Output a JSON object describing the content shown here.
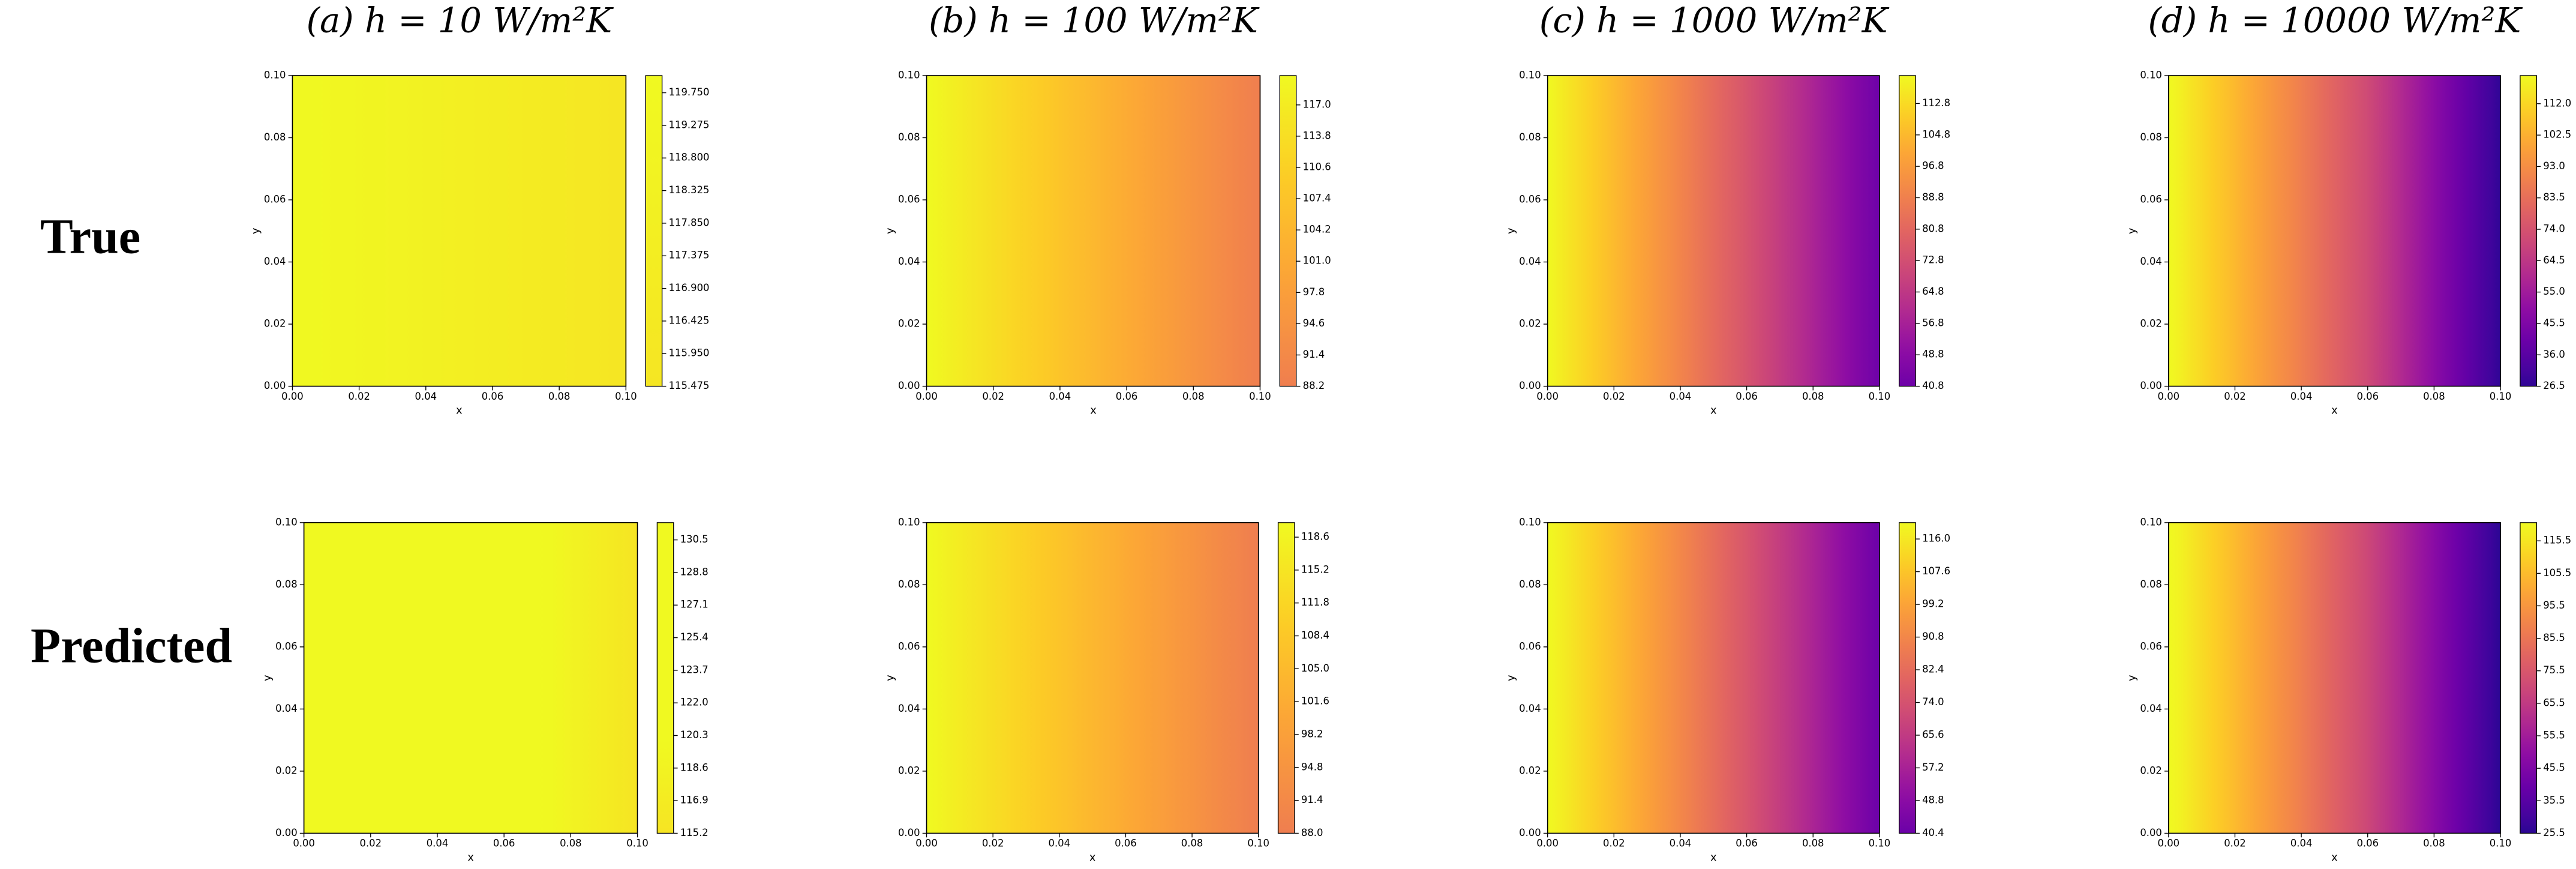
{
  "column_titles": [
    "(a) h = 10 W/m²K",
    "(b) h = 100 W/m²K",
    "(c) h = 1000 W/m²K",
    "(d) h = 10000 W/m²K"
  ],
  "row_labels": [
    "True",
    "Predicted"
  ],
  "chart_data": [
    {
      "type": "heatmap",
      "xlabel": "x",
      "ylabel": "y",
      "cmap": "plasma",
      "norm": [
        20,
        120
      ],
      "xlim": [
        0,
        0.1
      ],
      "ylim": [
        0,
        0.1
      ],
      "xticks": [
        {
          "value": 0,
          "label": "0.00"
        },
        {
          "value": 0.02,
          "label": "0.02"
        },
        {
          "value": 0.04,
          "label": "0.04"
        },
        {
          "value": 0.06,
          "label": "0.06"
        },
        {
          "value": 0.08,
          "label": "0.08"
        },
        {
          "value": 0.1,
          "label": "0.10"
        }
      ],
      "yticks": [
        {
          "value": 0,
          "label": "0.00"
        },
        {
          "value": 0.02,
          "label": "0.02"
        },
        {
          "value": 0.04,
          "label": "0.04"
        },
        {
          "value": 0.06,
          "label": "0.06"
        },
        {
          "value": 0.08,
          "label": "0.08"
        },
        {
          "value": 0.1,
          "label": "0.10"
        }
      ],
      "x": [
        0,
        0.02,
        0.04,
        0.06,
        0.08,
        0.1
      ],
      "values": [
        120.0,
        119.1,
        118.2,
        117.3,
        116.4,
        115.5
      ],
      "clim": [
        115.475,
        120.0
      ],
      "cticks": [
        115.475,
        {
          "value": 115.95,
          "label": "115.950"
        },
        116.425,
        {
          "value": 116.9,
          "label": "116.900"
        },
        117.375,
        {
          "value": 117.85,
          "label": "117.850"
        },
        118.325,
        {
          "value": 118.8,
          "label": "118.800"
        },
        119.275,
        {
          "value": 119.75,
          "label": "119.750"
        }
      ]
    },
    {
      "type": "heatmap",
      "xlabel": "x",
      "ylabel": "y",
      "cmap": "plasma",
      "norm": [
        20,
        120
      ],
      "xlim": [
        0,
        0.1
      ],
      "ylim": [
        0,
        0.1
      ],
      "xticks": [
        {
          "value": 0,
          "label": "0.00"
        },
        {
          "value": 0.02,
          "label": "0.02"
        },
        {
          "value": 0.04,
          "label": "0.04"
        },
        {
          "value": 0.06,
          "label": "0.06"
        },
        {
          "value": 0.08,
          "label": "0.08"
        },
        {
          "value": 0.1,
          "label": "0.10"
        }
      ],
      "yticks": [
        {
          "value": 0,
          "label": "0.00"
        },
        {
          "value": 0.02,
          "label": "0.02"
        },
        {
          "value": 0.04,
          "label": "0.04"
        },
        {
          "value": 0.06,
          "label": "0.06"
        },
        {
          "value": 0.08,
          "label": "0.08"
        },
        {
          "value": 0.1,
          "label": "0.10"
        }
      ],
      "x": [
        0,
        0.02,
        0.04,
        0.06,
        0.08,
        0.1
      ],
      "values": [
        120.0,
        113.8,
        107.6,
        101.2,
        94.8,
        88.2
      ],
      "clim": [
        88.2,
        120.0
      ],
      "cticks": [
        88.2,
        91.4,
        94.6,
        97.8,
        {
          "value": 101,
          "label": "101.0"
        },
        104.2,
        107.4,
        110.6,
        113.8,
        {
          "value": 117,
          "label": "117.0"
        }
      ]
    },
    {
      "type": "heatmap",
      "xlabel": "x",
      "ylabel": "y",
      "cmap": "plasma",
      "norm": [
        20,
        120
      ],
      "xlim": [
        0,
        0.1
      ],
      "ylim": [
        0,
        0.1
      ],
      "xticks": [
        {
          "value": 0,
          "label": "0.00"
        },
        {
          "value": 0.02,
          "label": "0.02"
        },
        {
          "value": 0.04,
          "label": "0.04"
        },
        {
          "value": 0.06,
          "label": "0.06"
        },
        {
          "value": 0.08,
          "label": "0.08"
        },
        {
          "value": 0.1,
          "label": "0.10"
        }
      ],
      "yticks": [
        {
          "value": 0,
          "label": "0.00"
        },
        {
          "value": 0.02,
          "label": "0.02"
        },
        {
          "value": 0.04,
          "label": "0.04"
        },
        {
          "value": 0.06,
          "label": "0.06"
        },
        {
          "value": 0.08,
          "label": "0.08"
        },
        {
          "value": 0.1,
          "label": "0.10"
        }
      ],
      "x": [
        0,
        0.02,
        0.04,
        0.06,
        0.08,
        0.1
      ],
      "values": [
        119.9,
        105,
        90,
        74.5,
        58,
        40.8
      ],
      "clim": [
        40.8,
        119.9
      ],
      "cticks": [
        40.8,
        48.8,
        56.8,
        64.8,
        72.8,
        80.8,
        88.8,
        96.8,
        104.8,
        112.8
      ]
    },
    {
      "type": "heatmap",
      "xlabel": "x",
      "ylabel": "y",
      "cmap": "plasma",
      "norm": [
        20,
        120
      ],
      "xlim": [
        0,
        0.1
      ],
      "ylim": [
        0,
        0.1
      ],
      "xticks": [
        {
          "value": 0,
          "label": "0.00"
        },
        {
          "value": 0.02,
          "label": "0.02"
        },
        {
          "value": 0.04,
          "label": "0.04"
        },
        {
          "value": 0.06,
          "label": "0.06"
        },
        {
          "value": 0.08,
          "label": "0.08"
        },
        {
          "value": 0.1,
          "label": "0.10"
        }
      ],
      "yticks": [
        {
          "value": 0,
          "label": "0.00"
        },
        {
          "value": 0.02,
          "label": "0.02"
        },
        {
          "value": 0.04,
          "label": "0.04"
        },
        {
          "value": 0.06,
          "label": "0.06"
        },
        {
          "value": 0.08,
          "label": "0.08"
        },
        {
          "value": 0.1,
          "label": "0.10"
        }
      ],
      "x": [
        0,
        0.02,
        0.04,
        0.06,
        0.08,
        0.1
      ],
      "values": [
        120.5,
        104.5,
        88,
        71,
        49,
        26.5
      ],
      "clim": [
        26.5,
        120.5
      ],
      "cticks": [
        26.5,
        {
          "value": 36,
          "label": "36.0"
        },
        45.5,
        {
          "value": 55,
          "label": "55.0"
        },
        64.5,
        {
          "value": 74,
          "label": "74.0"
        },
        83.5,
        {
          "value": 93,
          "label": "93.0"
        },
        102.5,
        {
          "value": 112,
          "label": "112.0"
        }
      ]
    },
    {
      "type": "heatmap",
      "xlabel": "x",
      "ylabel": "y",
      "cmap": "plasma",
      "norm": [
        20,
        120
      ],
      "xlim": [
        0,
        0.1
      ],
      "ylim": [
        0,
        0.1
      ],
      "xticks": [
        {
          "value": 0,
          "label": "0.00"
        },
        {
          "value": 0.02,
          "label": "0.02"
        },
        {
          "value": 0.04,
          "label": "0.04"
        },
        {
          "value": 0.06,
          "label": "0.06"
        },
        {
          "value": 0.08,
          "label": "0.08"
        },
        {
          "value": 0.1,
          "label": "0.10"
        }
      ],
      "yticks": [
        {
          "value": 0,
          "label": "0.00"
        },
        {
          "value": 0.02,
          "label": "0.02"
        },
        {
          "value": 0.04,
          "label": "0.04"
        },
        {
          "value": 0.06,
          "label": "0.06"
        },
        {
          "value": 0.08,
          "label": "0.08"
        },
        {
          "value": 0.1,
          "label": "0.10"
        }
      ],
      "x": [
        0,
        0.02,
        0.04,
        0.06,
        0.08,
        0.1
      ],
      "values": [
        131.4,
        128.3,
        125.2,
        122.0,
        118.7,
        115.2
      ],
      "clim": [
        115.2,
        131.4
      ],
      "cticks": [
        115.2,
        116.9,
        118.6,
        120.3,
        {
          "value": 122,
          "label": "122.0"
        },
        123.7,
        125.4,
        127.1,
        128.8,
        130.5
      ]
    },
    {
      "type": "heatmap",
      "xlabel": "x",
      "ylabel": "y",
      "cmap": "plasma",
      "norm": [
        20,
        120
      ],
      "xlim": [
        0,
        0.1
      ],
      "ylim": [
        0,
        0.1
      ],
      "xticks": [
        {
          "value": 0,
          "label": "0.00"
        },
        {
          "value": 0.02,
          "label": "0.02"
        },
        {
          "value": 0.04,
          "label": "0.04"
        },
        {
          "value": 0.06,
          "label": "0.06"
        },
        {
          "value": 0.08,
          "label": "0.08"
        },
        {
          "value": 0.1,
          "label": "0.10"
        }
      ],
      "yticks": [
        {
          "value": 0,
          "label": "0.00"
        },
        {
          "value": 0.02,
          "label": "0.02"
        },
        {
          "value": 0.04,
          "label": "0.04"
        },
        {
          "value": 0.06,
          "label": "0.06"
        },
        {
          "value": 0.08,
          "label": "0.08"
        },
        {
          "value": 0.1,
          "label": "0.10"
        }
      ],
      "x": [
        0,
        0.02,
        0.04,
        0.06,
        0.08,
        0.1
      ],
      "values": [
        120.1,
        113.8,
        107.5,
        101.1,
        94.6,
        88.0
      ],
      "clim": [
        88.0,
        120.1
      ],
      "cticks": [
        {
          "value": 88,
          "label": "88.0"
        },
        91.4,
        94.8,
        98.2,
        101.6,
        {
          "value": 105,
          "label": "105.0"
        },
        108.4,
        111.8,
        115.2,
        118.6
      ]
    },
    {
      "type": "heatmap",
      "xlabel": "x",
      "ylabel": "y",
      "cmap": "plasma",
      "norm": [
        20,
        120
      ],
      "xlim": [
        0,
        0.1
      ],
      "ylim": [
        0,
        0.1
      ],
      "xticks": [
        {
          "value": 0,
          "label": "0.00"
        },
        {
          "value": 0.02,
          "label": "0.02"
        },
        {
          "value": 0.04,
          "label": "0.04"
        },
        {
          "value": 0.06,
          "label": "0.06"
        },
        {
          "value": 0.08,
          "label": "0.08"
        },
        {
          "value": 0.1,
          "label": "0.10"
        }
      ],
      "yticks": [
        {
          "value": 0,
          "label": "0.00"
        },
        {
          "value": 0.02,
          "label": "0.02"
        },
        {
          "value": 0.04,
          "label": "0.04"
        },
        {
          "value": 0.06,
          "label": "0.06"
        },
        {
          "value": 0.08,
          "label": "0.08"
        },
        {
          "value": 0.1,
          "label": "0.10"
        }
      ],
      "x": [
        0,
        0.02,
        0.04,
        0.06,
        0.08,
        0.1
      ],
      "values": [
        120.2,
        106,
        91,
        75,
        58,
        40.4
      ],
      "clim": [
        40.4,
        120.2
      ],
      "cticks": [
        40.4,
        48.8,
        57.2,
        65.6,
        {
          "value": 74,
          "label": "74.0"
        },
        82.4,
        90.8,
        99.2,
        107.6,
        {
          "value": 116,
          "label": "116.0"
        }
      ]
    },
    {
      "type": "heatmap",
      "xlabel": "x",
      "ylabel": "y",
      "cmap": "plasma",
      "norm": [
        20,
        120
      ],
      "xlim": [
        0,
        0.1
      ],
      "ylim": [
        0,
        0.1
      ],
      "xticks": [
        {
          "value": 0,
          "label": "0.00"
        },
        {
          "value": 0.02,
          "label": "0.02"
        },
        {
          "value": 0.04,
          "label": "0.04"
        },
        {
          "value": 0.06,
          "label": "0.06"
        },
        {
          "value": 0.08,
          "label": "0.08"
        },
        {
          "value": 0.1,
          "label": "0.10"
        }
      ],
      "yticks": [
        {
          "value": 0,
          "label": "0.00"
        },
        {
          "value": 0.02,
          "label": "0.02"
        },
        {
          "value": 0.04,
          "label": "0.04"
        },
        {
          "value": 0.06,
          "label": "0.06"
        },
        {
          "value": 0.08,
          "label": "0.08"
        },
        {
          "value": 0.1,
          "label": "0.10"
        }
      ],
      "x": [
        0,
        0.02,
        0.04,
        0.06,
        0.08,
        0.1
      ],
      "values": [
        121.1,
        105,
        88,
        70,
        48.5,
        25.5
      ],
      "clim": [
        25.5,
        121.1
      ],
      "cticks": [
        25.5,
        35.5,
        45.5,
        55.5,
        65.5,
        75.5,
        85.5,
        95.5,
        105.5,
        115.5
      ]
    }
  ]
}
